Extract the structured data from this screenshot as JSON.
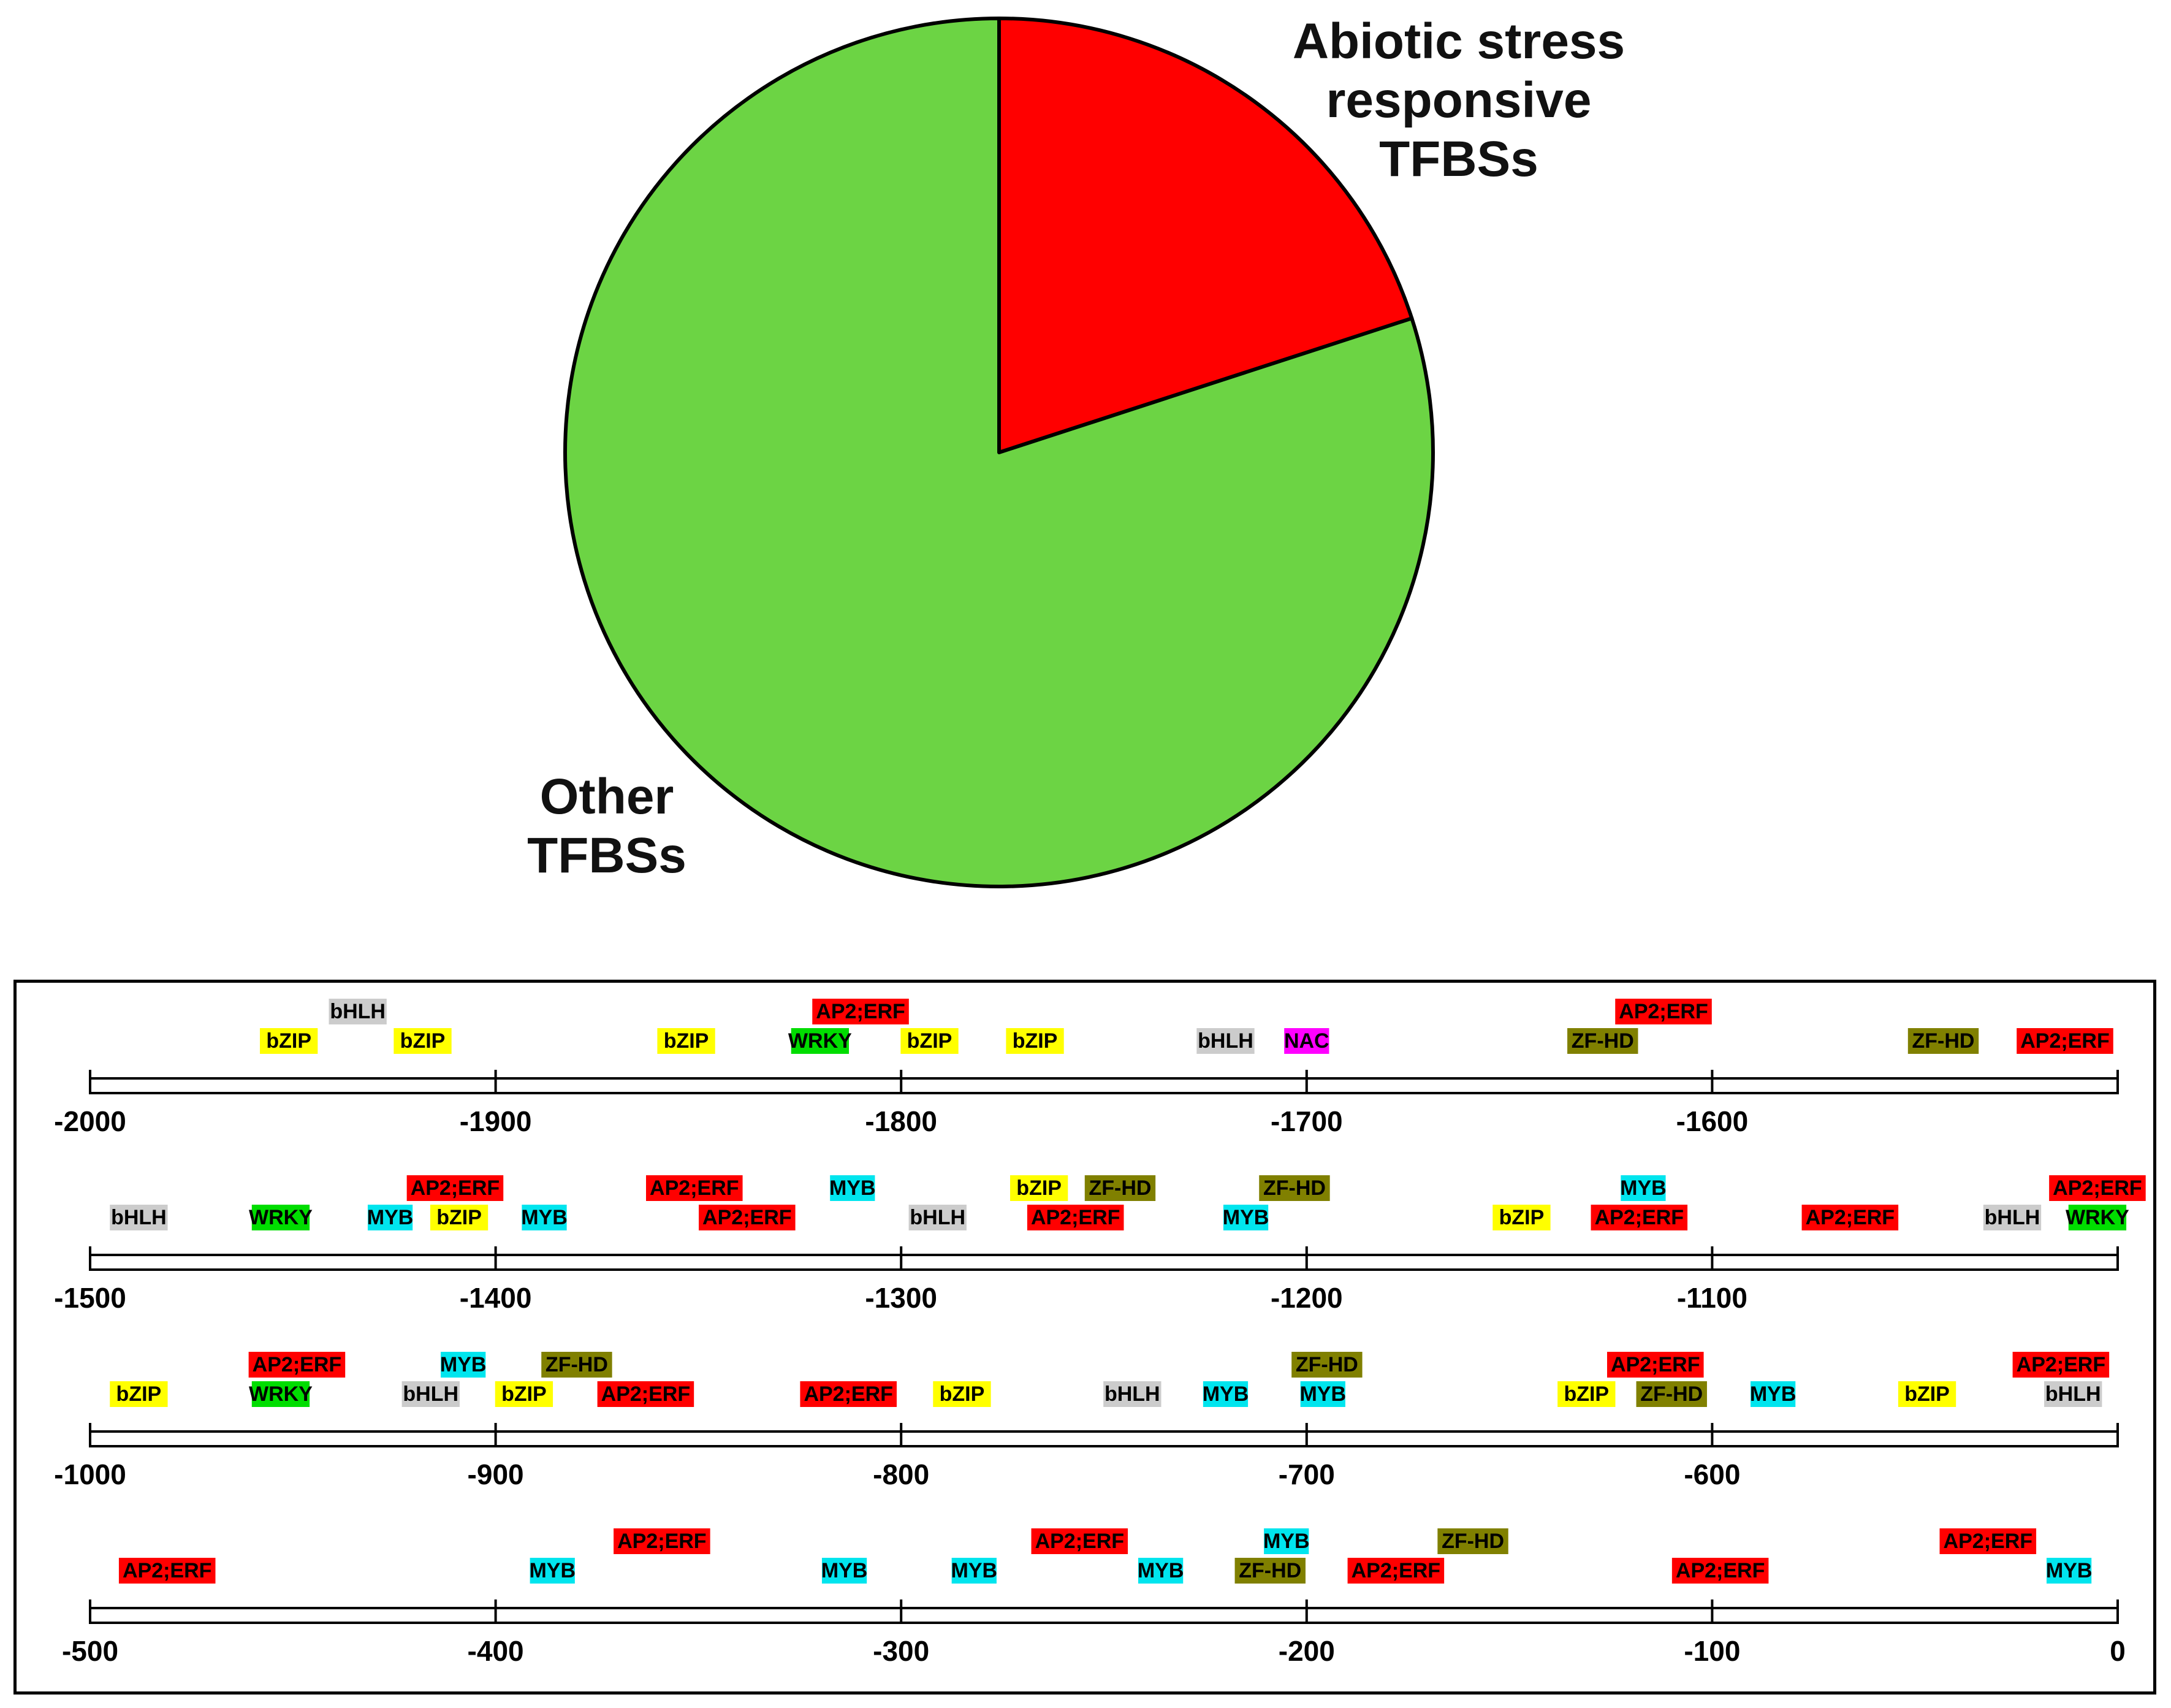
{
  "chart_data": [
    {
      "type": "pie",
      "slices": [
        {
          "label": "Abiotic stress responsive TFBSs",
          "label_lines": [
            "Abiotic stress",
            "responsive",
            "TFBSs"
          ],
          "value": 20,
          "color": "#ff0000"
        },
        {
          "label": "Other TFBSs",
          "label_lines": [
            "Other",
            "TFBSs"
          ],
          "value": 80,
          "color": "#6cd444"
        }
      ]
    },
    {
      "type": "promoter_map",
      "family_colors": {
        "AP2;ERF": "#ff0000",
        "bZIP": "#ffff00",
        "bHLH": "#cccccc",
        "WRKY": "#00dd00",
        "MYB": "#00e5ee",
        "ZF-HD": "#808000",
        "NAC": "#ff00ff"
      },
      "rows": [
        {
          "range": [
            -2000,
            -1500
          ],
          "ticks": [
            -2000,
            -1900,
            -1800,
            -1700,
            -1600
          ],
          "sites": [
            {
              "name": "bZIP",
              "pos": -1951,
              "level": 0
            },
            {
              "name": "bHLH",
              "pos": -1934,
              "level": 1
            },
            {
              "name": "bZIP",
              "pos": -1918,
              "level": 0
            },
            {
              "name": "bZIP",
              "pos": -1853,
              "level": 0
            },
            {
              "name": "AP2;ERF",
              "pos": -1810,
              "level": 1
            },
            {
              "name": "WRKY",
              "pos": -1820,
              "level": 0
            },
            {
              "name": "bZIP",
              "pos": -1793,
              "level": 0
            },
            {
              "name": "bZIP",
              "pos": -1767,
              "level": 0
            },
            {
              "name": "bHLH",
              "pos": -1720,
              "level": 0
            },
            {
              "name": "NAC",
              "pos": -1700,
              "level": 0
            },
            {
              "name": "AP2;ERF",
              "pos": -1612,
              "level": 1
            },
            {
              "name": "ZF-HD",
              "pos": -1627,
              "level": 0
            },
            {
              "name": "ZF-HD",
              "pos": -1543,
              "level": 0
            },
            {
              "name": "AP2;ERF",
              "pos": -1513,
              "level": 0
            }
          ]
        },
        {
          "range": [
            -1500,
            -1000
          ],
          "ticks": [
            -1500,
            -1400,
            -1300,
            -1200,
            -1100
          ],
          "sites": [
            {
              "name": "bHLH",
              "pos": -1488,
              "level": 0
            },
            {
              "name": "WRKY",
              "pos": -1453,
              "level": 0
            },
            {
              "name": "AP2;ERF",
              "pos": -1410,
              "level": 1
            },
            {
              "name": "MYB",
              "pos": -1426,
              "level": 0
            },
            {
              "name": "bZIP",
              "pos": -1409,
              "level": 0
            },
            {
              "name": "AP2;ERF",
              "pos": -1351,
              "level": 1
            },
            {
              "name": "MYB",
              "pos": -1388,
              "level": 0
            },
            {
              "name": "MYB",
              "pos": -1312,
              "level": 1
            },
            {
              "name": "AP2;ERF",
              "pos": -1338,
              "level": 0
            },
            {
              "name": "bHLH",
              "pos": -1291,
              "level": 0
            },
            {
              "name": "bZIP",
              "pos": -1266,
              "level": 1
            },
            {
              "name": "ZF-HD",
              "pos": -1246,
              "level": 1
            },
            {
              "name": "AP2;ERF",
              "pos": -1257,
              "level": 0
            },
            {
              "name": "ZF-HD",
              "pos": -1203,
              "level": 1
            },
            {
              "name": "MYB",
              "pos": -1215,
              "level": 0
            },
            {
              "name": "bZIP",
              "pos": -1147,
              "level": 0
            },
            {
              "name": "MYB",
              "pos": -1117,
              "level": 1
            },
            {
              "name": "AP2;ERF",
              "pos": -1118,
              "level": 0
            },
            {
              "name": "AP2;ERF",
              "pos": -1066,
              "level": 0
            },
            {
              "name": "bHLH",
              "pos": -1026,
              "level": 0
            },
            {
              "name": "AP2;ERF",
              "pos": -1005,
              "level": 1
            },
            {
              "name": "WRKY",
              "pos": -1005,
              "level": 0
            }
          ]
        },
        {
          "range": [
            -1000,
            -500
          ],
          "ticks": [
            -1000,
            -900,
            -800,
            -700,
            -600
          ],
          "sites": [
            {
              "name": "bZIP",
              "pos": -988,
              "level": 0
            },
            {
              "name": "AP2;ERF",
              "pos": -949,
              "level": 1
            },
            {
              "name": "WRKY",
              "pos": -953,
              "level": 0
            },
            {
              "name": "MYB",
              "pos": -908,
              "level": 1
            },
            {
              "name": "bHLH",
              "pos": -916,
              "level": 0
            },
            {
              "name": "ZF-HD",
              "pos": -880,
              "level": 1
            },
            {
              "name": "bZIP",
              "pos": -893,
              "level": 0
            },
            {
              "name": "AP2;ERF",
              "pos": -863,
              "level": 0
            },
            {
              "name": "AP2;ERF",
              "pos": -813,
              "level": 0
            },
            {
              "name": "bZIP",
              "pos": -785,
              "level": 0
            },
            {
              "name": "bHLH",
              "pos": -743,
              "level": 0
            },
            {
              "name": "MYB",
              "pos": -720,
              "level": 0
            },
            {
              "name": "ZF-HD",
              "pos": -695,
              "level": 1
            },
            {
              "name": "MYB",
              "pos": -696,
              "level": 0
            },
            {
              "name": "AP2;ERF",
              "pos": -614,
              "level": 1
            },
            {
              "name": "bZIP",
              "pos": -631,
              "level": 0
            },
            {
              "name": "ZF-HD",
              "pos": -610,
              "level": 0
            },
            {
              "name": "MYB",
              "pos": -585,
              "level": 0
            },
            {
              "name": "bZIP",
              "pos": -547,
              "level": 0
            },
            {
              "name": "AP2;ERF",
              "pos": -514,
              "level": 1
            },
            {
              "name": "bHLH",
              "pos": -511,
              "level": 0
            }
          ]
        },
        {
          "range": [
            -500,
            0
          ],
          "ticks": [
            -500,
            -400,
            -300,
            -200,
            -100,
            0
          ],
          "sites": [
            {
              "name": "AP2;ERF",
              "pos": -481,
              "level": 0
            },
            {
              "name": "AP2;ERF",
              "pos": -359,
              "level": 1
            },
            {
              "name": "MYB",
              "pos": -386,
              "level": 0
            },
            {
              "name": "MYB",
              "pos": -314,
              "level": 0
            },
            {
              "name": "MYB",
              "pos": -282,
              "level": 0
            },
            {
              "name": "AP2;ERF",
              "pos": -256,
              "level": 1
            },
            {
              "name": "MYB",
              "pos": -236,
              "level": 0
            },
            {
              "name": "MYB",
              "pos": -205,
              "level": 1
            },
            {
              "name": "ZF-HD",
              "pos": -209,
              "level": 0
            },
            {
              "name": "AP2;ERF",
              "pos": -178,
              "level": 0
            },
            {
              "name": "ZF-HD",
              "pos": -159,
              "level": 1
            },
            {
              "name": "AP2;ERF",
              "pos": -98,
              "level": 0
            },
            {
              "name": "AP2;ERF",
              "pos": -32,
              "level": 1
            },
            {
              "name": "MYB",
              "pos": -12,
              "level": 0
            }
          ]
        }
      ]
    }
  ]
}
